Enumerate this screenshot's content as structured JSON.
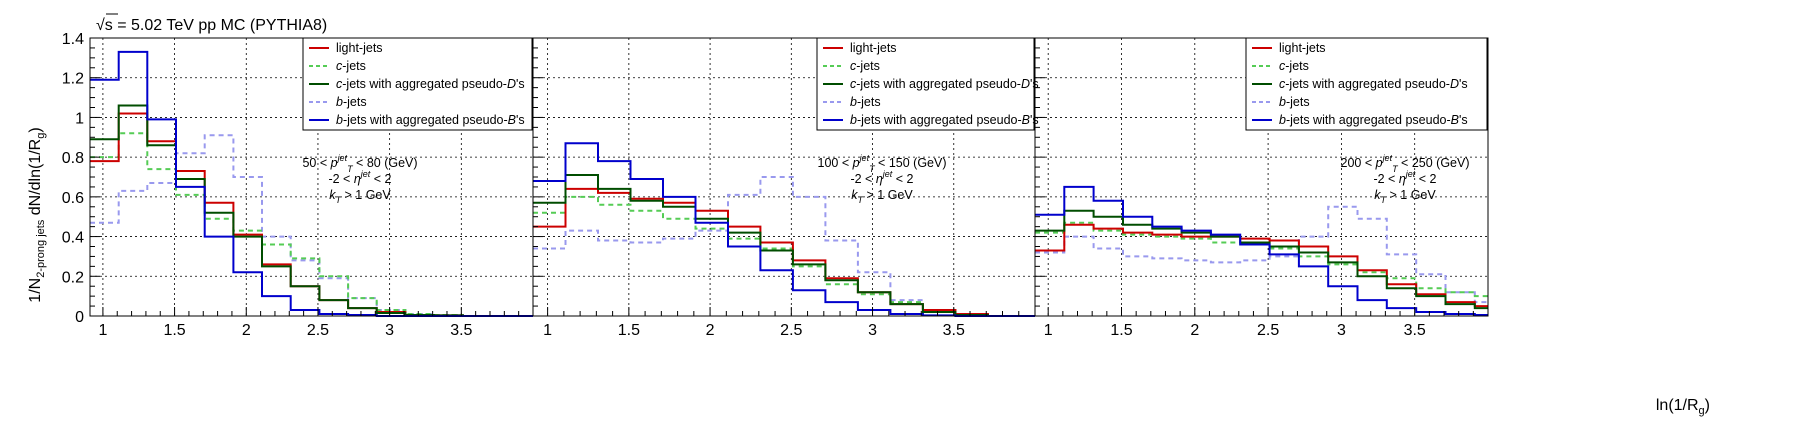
{
  "title": "5.02 TeV pp MC (PYTHIA8)",
  "title_prefix": "√s",
  "title_equals": " = ",
  "colors": {
    "light_jets": "#cc0000",
    "c_jets": "#55cc55",
    "c_jets_agg": "#004d00",
    "b_jets": "#9999ee",
    "b_jets_agg": "#0000cc"
  },
  "legend": {
    "light": "light-jets",
    "c_pre": "c",
    "c_post": "-jets",
    "cagg_pre": "c",
    "cagg_mid": "-jets with aggregated pseudo-",
    "cagg_D": "D",
    "cagg_post": "'s",
    "b_pre": "b",
    "b_post": "-jets",
    "bagg_pre": "b",
    "bagg_mid": "-jets with aggregated pseudo-",
    "bagg_B": "B",
    "bagg_post": "'s"
  },
  "annotations": {
    "p": "p",
    "sup_jet": "jet",
    "sub_T": "T",
    "unit": " (GeV)",
    "eta_pre": "-2 < ",
    "eta": "η",
    "eta_post": " < 2",
    "k": "k",
    "kt_post": " > 1 GeV",
    "lt": " < "
  },
  "chart_data": {
    "type": "line",
    "style": "step-histogram",
    "ylabel_pre": "1/N",
    "ylabel_sub": "2-prong jets",
    "ylabel_mid": " dN/dln(1/R",
    "ylabel_sub2": "g",
    "ylabel_post": ")",
    "xlabel_pre": "ln(1/R",
    "xlabel_sub": "g",
    "xlabel_post": ")",
    "ylim": [
      0,
      1.4
    ],
    "yticks": [
      "0",
      "0.2",
      "0.4",
      "0.6",
      "0.8",
      "1",
      "1.2",
      "1.4"
    ],
    "xticks": [
      "1",
      "1.5",
      "2",
      "2.5",
      "3",
      "3.5"
    ],
    "grid": true,
    "legend_position": "top-right",
    "panels": [
      {
        "pt_low": "50",
        "pt_high": "80",
        "xlim": [
          0.91,
          4.0
        ],
        "bin_edges": [
          0.91,
          1.11,
          1.31,
          1.51,
          1.71,
          1.91,
          2.11,
          2.31,
          2.51,
          2.71,
          2.91,
          3.11,
          3.31,
          3.51,
          3.71,
          3.91,
          4.0
        ],
        "series": [
          {
            "key": "b_jets",
            "values": [
              0.47,
              0.63,
              0.67,
              0.82,
              0.91,
              0.7,
              0.4,
              0.28,
              0.19,
              0.09,
              0.03,
              0.01,
              0.005,
              0,
              0,
              0
            ]
          },
          {
            "key": "c_jets",
            "values": [
              0.8,
              0.92,
              0.74,
              0.61,
              0.49,
              0.43,
              0.36,
              0.29,
              0.2,
              0.09,
              0.03,
              0.01,
              0.005,
              0,
              0,
              0
            ]
          },
          {
            "key": "light_jets",
            "values": [
              0.78,
              1.02,
              0.88,
              0.73,
              0.57,
              0.41,
              0.26,
              0.15,
              0.08,
              0.04,
              0.02,
              0.005,
              0.003,
              0,
              0,
              0
            ]
          },
          {
            "key": "c_jets_agg",
            "values": [
              0.89,
              1.06,
              0.86,
              0.69,
              0.52,
              0.4,
              0.25,
              0.15,
              0.08,
              0.04,
              0.015,
              0.005,
              0.003,
              0,
              0,
              0
            ]
          },
          {
            "key": "b_jets_agg",
            "values": [
              1.19,
              1.33,
              0.99,
              0.65,
              0.4,
              0.22,
              0.1,
              0.03,
              0.01,
              0.005,
              0,
              0,
              0,
              0,
              0,
              0
            ]
          }
        ]
      },
      {
        "pt_low": "100",
        "pt_high": "150",
        "xlim": [
          0.91,
          4.0
        ],
        "bin_edges": [
          0.91,
          1.11,
          1.31,
          1.51,
          1.71,
          1.91,
          2.11,
          2.31,
          2.51,
          2.71,
          2.91,
          3.11,
          3.31,
          3.51,
          3.71,
          3.91,
          4.0
        ],
        "series": [
          {
            "key": "b_jets",
            "values": [
              0.34,
              0.43,
              0.38,
              0.37,
              0.39,
              0.43,
              0.61,
              0.7,
              0.6,
              0.38,
              0.22,
              0.08,
              0.02,
              0.005,
              0,
              0
            ]
          },
          {
            "key": "c_jets",
            "values": [
              0.52,
              0.6,
              0.56,
              0.53,
              0.49,
              0.44,
              0.39,
              0.34,
              0.25,
              0.16,
              0.11,
              0.07,
              0.03,
              0.01,
              0,
              0
            ]
          },
          {
            "key": "light_jets",
            "values": [
              0.45,
              0.64,
              0.62,
              0.59,
              0.57,
              0.53,
              0.45,
              0.37,
              0.28,
              0.19,
              0.12,
              0.06,
              0.03,
              0.01,
              0,
              0
            ]
          },
          {
            "key": "c_jets_agg",
            "values": [
              0.57,
              0.71,
              0.64,
              0.58,
              0.55,
              0.49,
              0.42,
              0.33,
              0.26,
              0.18,
              0.12,
              0.06,
              0.02,
              0.005,
              0,
              0
            ]
          },
          {
            "key": "b_jets_agg",
            "values": [
              0.68,
              0.87,
              0.78,
              0.69,
              0.6,
              0.47,
              0.35,
              0.23,
              0.13,
              0.07,
              0.03,
              0.01,
              0.003,
              0,
              0,
              0
            ]
          }
        ]
      },
      {
        "pt_low": "200",
        "pt_high": "250",
        "xlim": [
          0.91,
          4.0
        ],
        "bin_edges": [
          0.91,
          1.11,
          1.31,
          1.51,
          1.71,
          1.91,
          2.11,
          2.31,
          2.51,
          2.71,
          2.91,
          3.11,
          3.31,
          3.51,
          3.71,
          3.91,
          4.0
        ],
        "series": [
          {
            "key": "b_jets",
            "values": [
              0.32,
              0.4,
              0.34,
              0.3,
              0.29,
              0.28,
              0.27,
              0.28,
              0.3,
              0.4,
              0.55,
              0.49,
              0.31,
              0.21,
              0.12,
              0.07
            ]
          },
          {
            "key": "c_jets",
            "values": [
              0.42,
              0.47,
              0.43,
              0.41,
              0.4,
              0.39,
              0.37,
              0.36,
              0.34,
              0.3,
              0.26,
              0.22,
              0.19,
              0.14,
              0.12,
              0.1
            ]
          },
          {
            "key": "light_jets",
            "values": [
              0.33,
              0.46,
              0.44,
              0.42,
              0.41,
              0.4,
              0.4,
              0.39,
              0.38,
              0.35,
              0.3,
              0.23,
              0.16,
              0.11,
              0.07,
              0.05
            ]
          },
          {
            "key": "c_jets_agg",
            "values": [
              0.43,
              0.53,
              0.5,
              0.46,
              0.44,
              0.42,
              0.4,
              0.37,
              0.35,
              0.32,
              0.27,
              0.2,
              0.14,
              0.1,
              0.06,
              0.04
            ]
          },
          {
            "key": "b_jets_agg",
            "values": [
              0.51,
              0.65,
              0.58,
              0.5,
              0.45,
              0.43,
              0.41,
              0.36,
              0.31,
              0.25,
              0.15,
              0.08,
              0.04,
              0.02,
              0.01,
              0.005
            ]
          }
        ]
      }
    ]
  }
}
